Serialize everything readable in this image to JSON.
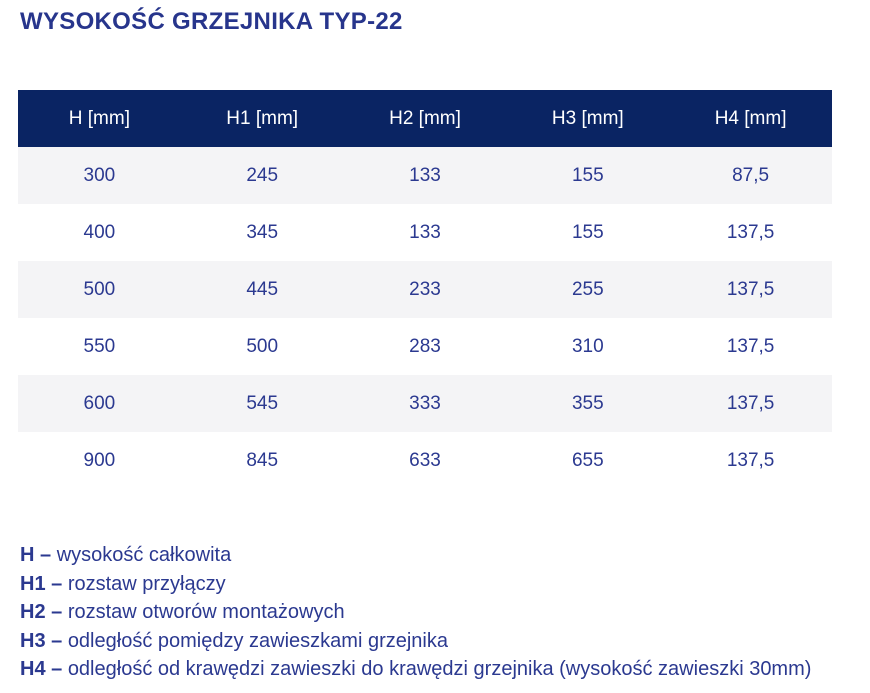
{
  "page": {
    "title": "WYSOKOŚĆ GRZEJNIKA TYP-22"
  },
  "table": {
    "headers": [
      "H [mm]",
      "H1 [mm]",
      "H2 [mm]",
      "H3 [mm]",
      "H4 [mm]"
    ],
    "rows": [
      [
        "300",
        "245",
        "133",
        "155",
        "87,5"
      ],
      [
        "400",
        "345",
        "133",
        "155",
        "137,5"
      ],
      [
        "500",
        "445",
        "233",
        "255",
        "137,5"
      ],
      [
        "550",
        "500",
        "283",
        "310",
        "137,5"
      ],
      [
        "600",
        "545",
        "333",
        "355",
        "137,5"
      ],
      [
        "900",
        "845",
        "633",
        "655",
        "137,5"
      ]
    ]
  },
  "legend": [
    {
      "term": "H –",
      "definition": "wysokość całkowita"
    },
    {
      "term": "H1 –",
      "definition": "rozstaw przyłączy"
    },
    {
      "term": "H2 –",
      "definition": "rozstaw otworów montażowych"
    },
    {
      "term": "H3 –",
      "definition": "odległość pomiędzy zawieszkami grzejnika"
    },
    {
      "term": "H4 –",
      "definition": "odległość od krawędzi zawieszki do krawędzi grzejnika (wysokość zawieszki 30mm)"
    }
  ],
  "colors": {
    "header_bg": "#0a2463",
    "header_text": "#ffffff",
    "row_alt_bg": "#f4f4f6",
    "text_navy": "#2b3990",
    "title_navy": "#27358c"
  }
}
